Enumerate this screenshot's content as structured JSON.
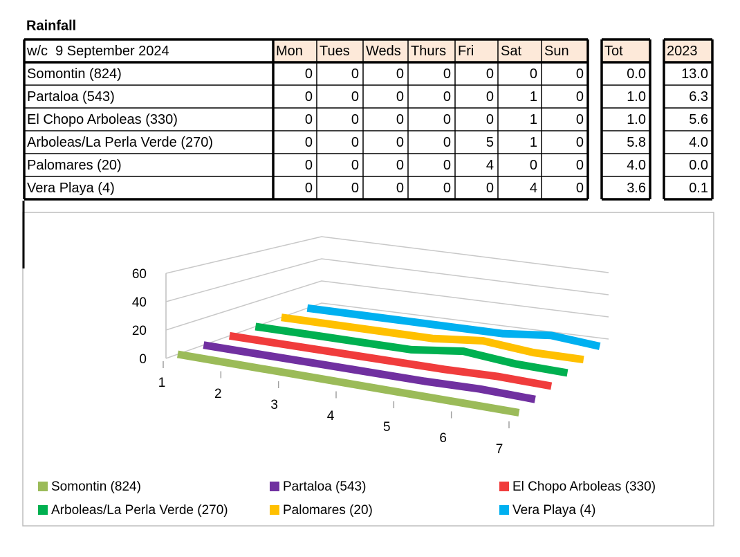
{
  "title": "Rainfall",
  "table": {
    "header": [
      "w/c  9 September 2024",
      "Mon",
      "Tues",
      "Weds",
      "Thurs",
      "Fri",
      "Sat",
      "Sun",
      "Tot",
      "2023"
    ],
    "rows": [
      [
        "Somontin (824)",
        "0",
        "0",
        "0",
        "0",
        "0",
        "0",
        "0",
        "0.0",
        "13.0"
      ],
      [
        "Partaloa (543)",
        "0",
        "0",
        "0",
        "0",
        "0",
        "1",
        "0",
        "1.0",
        "6.3"
      ],
      [
        "El Chopo Arboleas (330)",
        "0",
        "0",
        "0",
        "0",
        "0",
        "1",
        "0",
        "1.0",
        "5.6"
      ],
      [
        "Arboleas/La Perla Verde (270)",
        "0",
        "0",
        "0",
        "0",
        "5",
        "1",
        "0",
        "5.8",
        "4.0"
      ],
      [
        "Palomares (20)",
        "0",
        "0",
        "0",
        "0",
        "4",
        "0",
        "0",
        "4.0",
        "0.0"
      ],
      [
        "Vera Playa (4)",
        "0",
        "0",
        "0",
        "0",
        "0",
        "4",
        "0",
        "3.6",
        "0.1"
      ]
    ]
  },
  "chart_data": {
    "type": "line",
    "x": [
      1,
      2,
      3,
      4,
      5,
      6,
      7
    ],
    "ylim": [
      0,
      60
    ],
    "yticks": [
      0,
      20,
      40,
      60
    ],
    "grid": true,
    "series": [
      {
        "name": "Somontin (824)",
        "color": "#9bbb59",
        "values": [
          0,
          0,
          0,
          0,
          0,
          0,
          0
        ]
      },
      {
        "name": "Partaloa (543)",
        "color": "#7030a0",
        "values": [
          0,
          0,
          0,
          0,
          0,
          1,
          0
        ]
      },
      {
        "name": "El Chopo Arboleas (330)",
        "color": "#f03c3c",
        "values": [
          0,
          0,
          0,
          0,
          0,
          1,
          0
        ]
      },
      {
        "name": "Arboleas/La Perla Verde (270)",
        "color": "#00b050",
        "values": [
          0,
          0,
          0,
          0,
          5,
          1,
          0
        ]
      },
      {
        "name": "Palomares (20)",
        "color": "#ffc000",
        "values": [
          0,
          0,
          0,
          0,
          4,
          0,
          0
        ]
      },
      {
        "name": "Vera Playa (4)",
        "color": "#00b0f0",
        "values": [
          0,
          0,
          0,
          0,
          0,
          4,
          0
        ]
      }
    ]
  }
}
